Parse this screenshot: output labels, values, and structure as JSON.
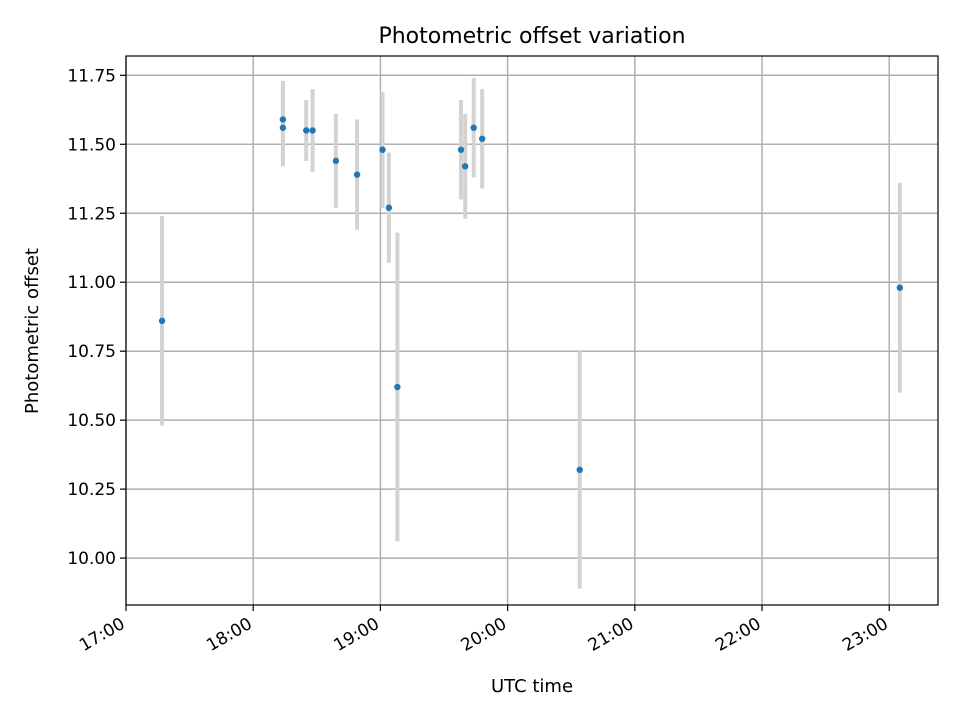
{
  "chart_data": {
    "type": "scatter",
    "title": "Photometric offset variation",
    "xlabel": "UTC time",
    "ylabel": "Photometric offset",
    "x_unit": "hours UTC",
    "xlim": [
      "17:00",
      "23:23"
    ],
    "ylim": [
      9.83,
      11.82
    ],
    "x_ticks": [
      "17:00",
      "18:00",
      "19:00",
      "20:00",
      "21:00",
      "22:00",
      "23:00"
    ],
    "y_ticks": [
      "10.00",
      "10.25",
      "10.50",
      "10.75",
      "11.00",
      "11.25",
      "11.50",
      "11.75"
    ],
    "grid": true,
    "legend": "none",
    "colors": {
      "point": "#1f77b4",
      "errorbar": "#d3d3d3",
      "grid": "#b0b0b0"
    },
    "points": [
      {
        "x": "17:17",
        "y": 10.86,
        "err": 0.38
      },
      {
        "x": "18:14",
        "y": 11.59,
        "err": 0.14
      },
      {
        "x": "18:14",
        "y": 11.56,
        "err": 0.14
      },
      {
        "x": "18:25",
        "y": 11.55,
        "err": 0.11
      },
      {
        "x": "18:28",
        "y": 11.55,
        "err": 0.15
      },
      {
        "x": "18:39",
        "y": 11.44,
        "err": 0.17
      },
      {
        "x": "18:49",
        "y": 11.39,
        "err": 0.2
      },
      {
        "x": "19:01",
        "y": 11.48,
        "err": 0.21
      },
      {
        "x": "19:04",
        "y": 11.27,
        "err": 0.2
      },
      {
        "x": "19:08",
        "y": 10.62,
        "err": 0.56
      },
      {
        "x": "19:38",
        "y": 11.48,
        "err": 0.18
      },
      {
        "x": "19:40",
        "y": 11.42,
        "err": 0.19
      },
      {
        "x": "19:44",
        "y": 11.56,
        "err": 0.18
      },
      {
        "x": "19:48",
        "y": 11.52,
        "err": 0.18
      },
      {
        "x": "20:34",
        "y": 10.32,
        "err": 0.43
      },
      {
        "x": "23:05",
        "y": 10.98,
        "err": 0.38
      }
    ]
  }
}
